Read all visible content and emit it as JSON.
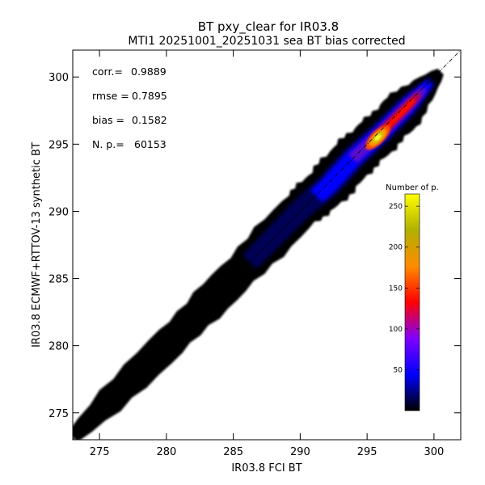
{
  "chart_data": {
    "type": "heatmap",
    "title": "BT pxy_clear for IR03.8",
    "subtitle": "MTI1 20251001_20251031 sea BT bias corrected",
    "xlabel": "IR03.8 FCI BT",
    "ylabel": "IR03.8 ECMWF+RTTOV-13 synthetic BT",
    "xlim": [
      273,
      302
    ],
    "ylim": [
      273,
      302
    ],
    "xticks": [
      275,
      280,
      285,
      290,
      295,
      300
    ],
    "yticks": [
      275,
      280,
      285,
      290,
      295,
      300
    ],
    "grid": false,
    "stats": [
      {
        "label": "corr.=",
        "value": "0.9889"
      },
      {
        "label": "rmse =",
        "value": "0.7895"
      },
      {
        "label": "bias =",
        "value": "0.1582"
      },
      {
        "label": "N. p.=",
        "value": "60153"
      }
    ],
    "identity_line": {
      "from": [
        273,
        273
      ],
      "to": [
        302,
        302
      ],
      "style": "dash-dot"
    },
    "density": {
      "ridge": [
        [
          273,
          273.2
        ],
        [
          280,
          280.0
        ],
        [
          285,
          285.0
        ],
        [
          290,
          290.1
        ],
        [
          292,
          291.8
        ],
        [
          294,
          294.0
        ],
        [
          296,
          295.8
        ],
        [
          298,
          297.8
        ],
        [
          300.5,
          300.4
        ]
      ],
      "peak": [
        295.8,
        295.5
      ],
      "max_count": 265
    },
    "colorbar": {
      "title": "Number of p.",
      "ticks": [
        50,
        100,
        150,
        200,
        250
      ],
      "range": [
        0,
        265
      ],
      "colormap": [
        "#000000",
        "#0000ff",
        "#7f00ff",
        "#ff0000",
        "#ff8c00",
        "#b0b000",
        "#ffff00"
      ],
      "placement": "right-inside"
    }
  }
}
